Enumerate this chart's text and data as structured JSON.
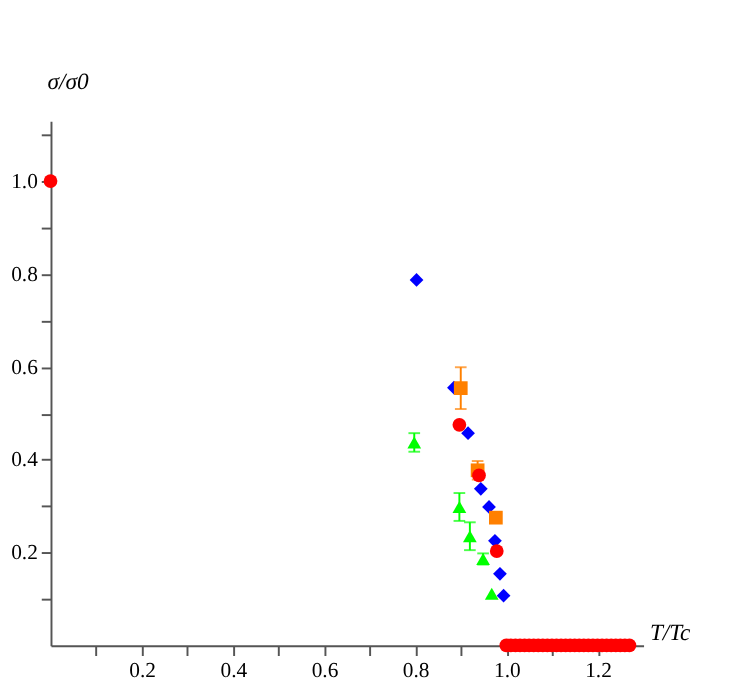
{
  "chart_data": {
    "type": "scatter",
    "xlabel": "T/Tc",
    "ylabel": "σ/σ0",
    "xlim": [
      0,
      1.3
    ],
    "ylim": [
      0,
      1.13
    ],
    "xticks": [
      {
        "value": 0.1,
        "label": null
      },
      0.2,
      {
        "value": 0.3,
        "label": null
      },
      0.4,
      {
        "value": 0.5,
        "label": null
      },
      0.6,
      {
        "value": 0.7,
        "label": null
      },
      0.8,
      {
        "value": 0.9,
        "label": null
      },
      {
        "value": 1,
        "label": "1.0"
      },
      {
        "value": 1.1,
        "label": null
      },
      1.2
    ],
    "yticks": [
      {
        "value": 0.1,
        "label": null
      },
      0.2,
      {
        "value": 0.3,
        "label": null
      },
      0.4,
      {
        "value": 0.5,
        "label": null
      },
      0.6,
      {
        "value": 0.7,
        "label": null
      },
      0.8,
      {
        "value": 0.9,
        "label": null
      },
      {
        "value": 1,
        "label": "1.0"
      },
      {
        "value": 1.1,
        "label": null
      }
    ],
    "grid": false,
    "legend": false,
    "series": [
      {
        "color": "#ff0000",
        "marker": "circle",
        "x": [
          0,
          0.897,
          0.94,
          0.979,
          1.0,
          1.01,
          1.02,
          1.03,
          1.04,
          1.05,
          1.06,
          1.07,
          1.08,
          1.09,
          1.1,
          1.11,
          1.12,
          1.13,
          1.14,
          1.15,
          1.16,
          1.17,
          1.18,
          1.19,
          1.2,
          1.21,
          1.22,
          1.23,
          1.24,
          1.25,
          1.26,
          1.27
        ],
        "values": [
          1.0,
          0.475,
          0.366,
          0.203,
          0,
          0,
          0,
          0,
          0,
          0,
          0,
          0,
          0,
          0,
          0,
          0,
          0,
          0,
          0,
          0,
          0,
          0,
          0,
          0,
          0,
          0,
          0,
          0,
          0,
          0,
          0,
          0
        ]
      },
      {
        "color": "#0000ff",
        "marker": "diamond",
        "x": [
          0.803,
          0.885,
          0.916,
          0.944,
          0.962,
          0.975,
          0.986,
          0.994
        ],
        "values": [
          0.787,
          0.555,
          0.457,
          0.337,
          0.298,
          0.225,
          0.154,
          0.107
        ]
      },
      {
        "color": "#ff8000",
        "marker": "square",
        "x": [
          0.9,
          0.937,
          0.977
        ],
        "values": [
          0.554,
          0.377,
          0.275
        ],
        "errors": [
          0.045,
          0.02,
          null
        ]
      },
      {
        "color": "#00ff00",
        "marker": "triangle",
        "x": [
          0.798,
          0.897,
          0.92,
          0.949,
          0.968
        ],
        "values": [
          0.437,
          0.298,
          0.235,
          0.186,
          0.111
        ],
        "errors": [
          0.02,
          0.03,
          0.03,
          0.012,
          null
        ]
      }
    ]
  }
}
